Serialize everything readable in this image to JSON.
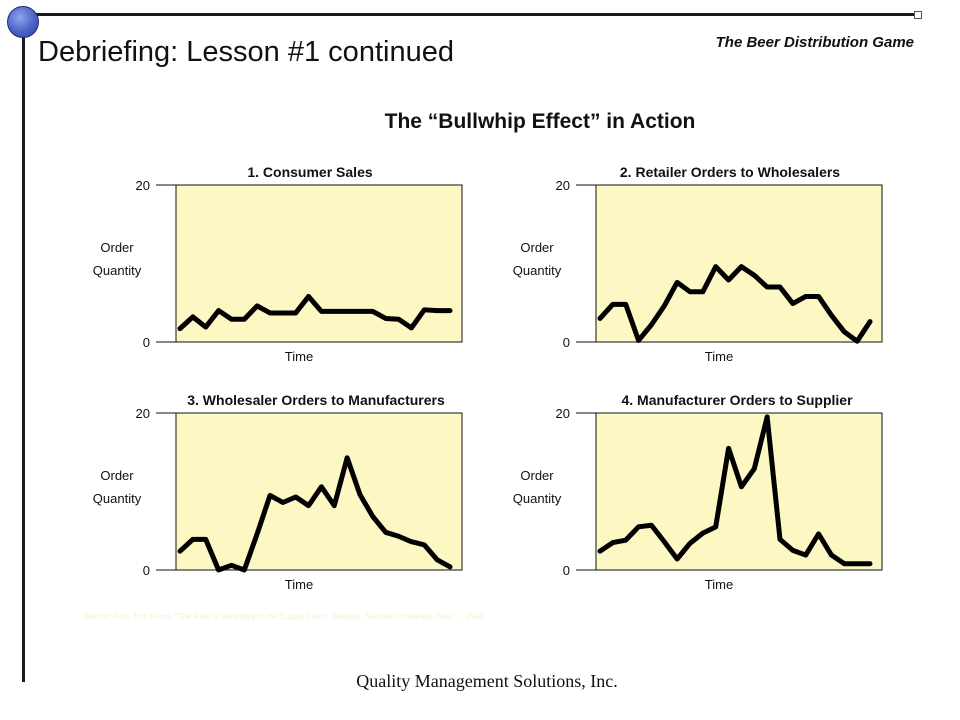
{
  "slide": {
    "title": "Debriefing: Lesson #1 continued",
    "game_title": "The Beer Distribution Game",
    "heading": "The “Bullwhip Effect” in Action",
    "footer": "Quality Management Solutions, Inc.",
    "source_note": "Source: Prof. Tom Fermi, \"The Role of Variability in the Supply Chain\" Session, Stanford University, Sept. ... 1995"
  },
  "colors": {
    "plot_background": "#fdf7c3",
    "line": "#000000",
    "accent_dot": "#4a63c9"
  },
  "chart_data": [
    {
      "type": "line",
      "title": "1.  Consumer  Sales",
      "xlabel": "Time",
      "ylabel": [
        "Order",
        "Quantity"
      ],
      "ylim": [
        0,
        20
      ],
      "yticks": [
        0,
        20
      ],
      "x": [
        0,
        1,
        2,
        3,
        4,
        5,
        6,
        7,
        8,
        9,
        10,
        11,
        12,
        13,
        14,
        15,
        16,
        17,
        18,
        19,
        20,
        21
      ],
      "series": [
        {
          "values": [
            1.7,
            3.2,
            1.9,
            4.0,
            2.9,
            2.9,
            4.6,
            3.7,
            3.7,
            3.7,
            5.8,
            3.9,
            3.9,
            3.9,
            3.9,
            3.9,
            3.0,
            2.9,
            1.8,
            4.1,
            4.0,
            4.0
          ]
        }
      ]
    },
    {
      "type": "line",
      "title": "2.  Retailer  Orders  to  Wholesalers",
      "xlabel": "Time",
      "ylabel": [
        "Order",
        "Quantity"
      ],
      "ylim": [
        0,
        20
      ],
      "yticks": [
        0,
        20
      ],
      "x": [
        0,
        1,
        2,
        3,
        4,
        5,
        6,
        7,
        8,
        9,
        10,
        11,
        12,
        13,
        14,
        15,
        16,
        17,
        18,
        19,
        20,
        21
      ],
      "series": [
        {
          "values": [
            3.0,
            4.8,
            4.8,
            0.2,
            2.2,
            4.6,
            7.6,
            6.4,
            6.4,
            9.6,
            7.9,
            9.6,
            8.5,
            7.0,
            7.0,
            4.9,
            5.8,
            5.8,
            3.4,
            1.3,
            0.1,
            2.6
          ]
        }
      ]
    },
    {
      "type": "line",
      "title": "3. Wholesaler  Orders  to  Manufacturers",
      "xlabel": "Time",
      "ylabel": [
        "Order",
        "Quantity"
      ],
      "ylim": [
        0,
        20
      ],
      "yticks": [
        0,
        20
      ],
      "x": [
        0,
        1,
        2,
        3,
        4,
        5,
        6,
        7,
        8,
        9,
        10,
        11,
        12,
        13,
        14,
        15,
        16,
        17,
        18,
        19,
        20,
        21
      ],
      "series": [
        {
          "values": [
            2.4,
            3.9,
            3.9,
            0.0,
            0.6,
            0.0,
            4.6,
            9.5,
            8.6,
            9.3,
            8.2,
            10.6,
            8.2,
            14.3,
            9.6,
            6.8,
            4.8,
            4.3,
            3.6,
            3.2,
            1.3,
            0.4
          ]
        }
      ]
    },
    {
      "type": "line",
      "title": "4.  Manufacturer  Orders  to  Supplier",
      "xlabel": "Time",
      "ylabel": [
        "Order",
        "Quantity"
      ],
      "ylim": [
        0,
        20
      ],
      "yticks": [
        0,
        20
      ],
      "x": [
        0,
        1,
        2,
        3,
        4,
        5,
        6,
        7,
        8,
        9,
        10,
        11,
        12,
        13,
        14,
        15,
        16,
        17,
        18,
        19,
        20,
        21
      ],
      "series": [
        {
          "values": [
            2.4,
            3.5,
            3.8,
            5.5,
            5.7,
            3.6,
            1.4,
            3.4,
            4.7,
            5.5,
            15.5,
            10.6,
            12.9,
            19.5,
            3.9,
            2.5,
            1.9,
            4.6,
            1.9,
            0.8,
            0.8,
            0.8
          ]
        }
      ]
    }
  ]
}
